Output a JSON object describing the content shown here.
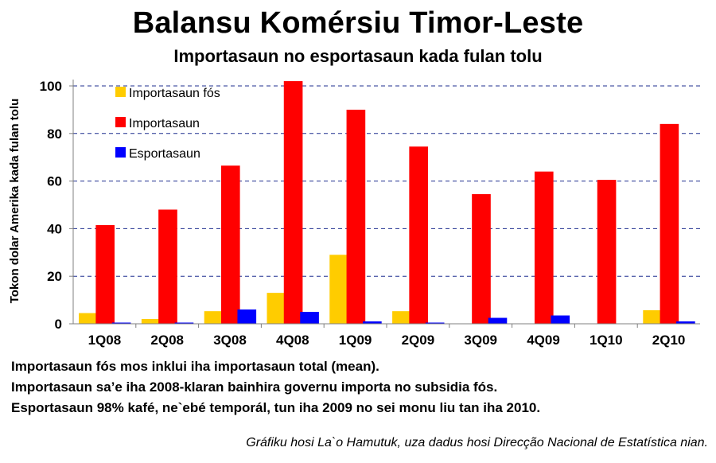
{
  "header": {
    "title": "Balansu Komérsiu Timor-Leste",
    "subtitle": "Importasaun no esportasaun kada fulan tolu"
  },
  "chart_data": {
    "type": "bar",
    "title": "Balansu Komérsiu Timor-Leste",
    "subtitle": "Importasaun no esportasaun kada fulan tolu",
    "xlabel": "",
    "ylabel": "Tokon dolar Amerika kada fulan tolu",
    "ylim": [
      0,
      100
    ],
    "yticks": [
      0,
      20,
      40,
      60,
      80,
      100
    ],
    "grid": "horizontal dashed",
    "legend_position": "top-left",
    "categories": [
      "1Q08",
      "2Q08",
      "3Q08",
      "4Q08",
      "1Q09",
      "2Q09",
      "3Q09",
      "4Q09",
      "1Q10",
      "2Q10"
    ],
    "series": [
      {
        "name": "Importasaun fós",
        "color": "#ffcc00",
        "values": [
          4.5,
          2,
          5.3,
          13,
          29,
          5.3,
          0,
          0,
          0,
          5.7
        ]
      },
      {
        "name": "Importasaun",
        "color": "#ff0000",
        "values": [
          41.5,
          48,
          66.5,
          102,
          90,
          74.5,
          54.5,
          64,
          60.5,
          84
        ]
      },
      {
        "name": "Esportasaun",
        "color": "#0000ff",
        "values": [
          0.5,
          0.5,
          6,
          5,
          1,
          0.5,
          2.5,
          3.5,
          0,
          1
        ]
      }
    ]
  },
  "notes": [
    "Importasaun fós mos inklui iha importasaun total (mean).",
    "Importasaun sa’e iha 2008-klaran bainhira governu importa no subsidia fós.",
    "Esportasaun 98% kafé, ne`ebé temporál, tun iha 2009 no sei monu liu tan iha 2010."
  ],
  "credit": "Gráfiku hosi La`o Hamutuk, uza dadus hosi Direcção Nacional de Estatística nian."
}
